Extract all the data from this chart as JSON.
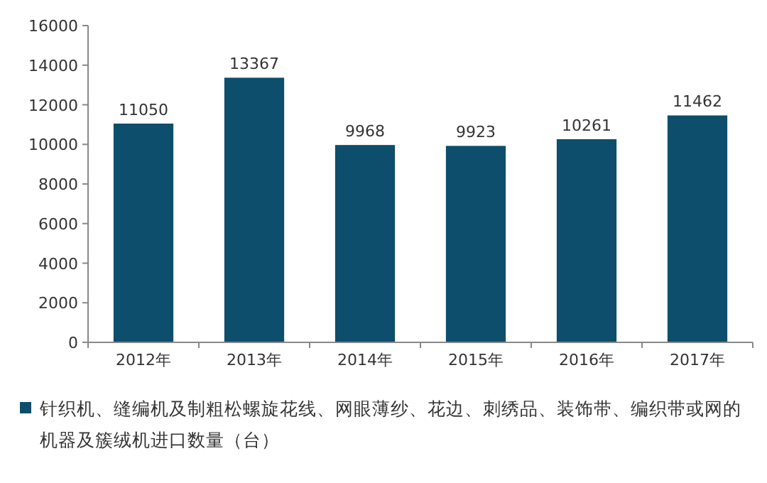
{
  "chart_data": {
    "type": "bar",
    "categories": [
      "2012年",
      "2013年",
      "2014年",
      "2015年",
      "2016年",
      "2017年"
    ],
    "series": [
      {
        "name": "针织机、缝编机及制粗松螺旋花线、网眼薄纱、花边、刺绣品、装饰带、编织带或网的机器及簇绒机进口数量（台）",
        "color": "#0d4e6c",
        "values": [
          11050,
          13367,
          9968,
          9923,
          10261,
          11462
        ]
      }
    ],
    "ylim": [
      0,
      16000
    ],
    "yticks": [
      0,
      2000,
      4000,
      6000,
      8000,
      10000,
      12000,
      14000,
      16000
    ],
    "data_labels": true,
    "legend": "bottom",
    "grid": false
  }
}
